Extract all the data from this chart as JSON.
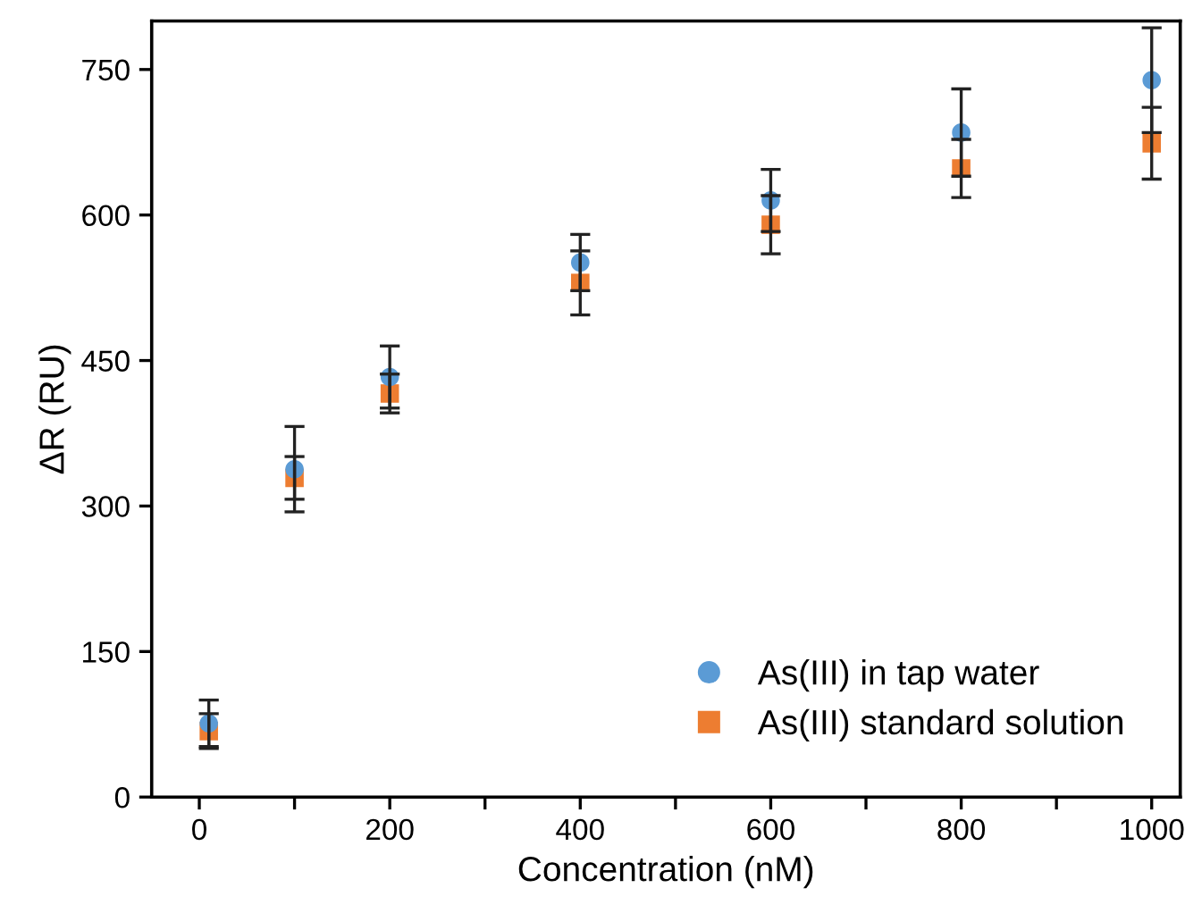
{
  "chart_data": {
    "type": "scatter",
    "xlabel": "Concentration (nM)",
    "ylabel": "ΔR (RU)",
    "x": [
      10,
      100,
      200,
      400,
      600,
      800,
      1000
    ],
    "series": [
      {
        "name": "As(III) in tap water",
        "color": "#5b9bd5",
        "marker": "circle",
        "values": [
          76,
          338,
          433,
          551,
          615,
          685,
          739
        ],
        "errors": [
          24,
          44,
          32,
          29,
          32,
          45,
          54
        ]
      },
      {
        "name": "As(III) standard solution",
        "color": "#ed7d31",
        "marker": "square",
        "values": [
          68,
          329,
          416,
          530,
          590,
          648,
          674
        ],
        "errors": [
          18,
          22,
          20,
          33,
          30,
          30,
          37
        ]
      }
    ],
    "xlim": [
      -50,
      1030
    ],
    "ylim": [
      0,
      800
    ],
    "xticks": [
      0,
      {
        "value": 100,
        "label": null
      },
      200,
      {
        "value": 300,
        "label": null
      },
      400,
      {
        "value": 500,
        "label": null
      },
      600,
      {
        "value": 700,
        "label": null
      },
      800,
      {
        "value": 900,
        "label": null
      },
      1000
    ],
    "yticks": [
      0,
      150,
      300,
      450,
      600,
      750
    ],
    "grid": false,
    "legend": "bottom right"
  }
}
